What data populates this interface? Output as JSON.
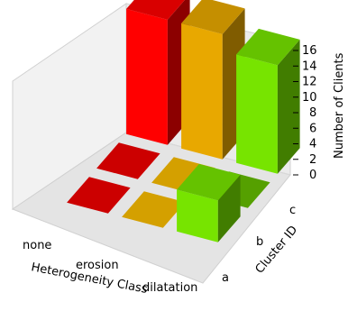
{
  "chart_data": {
    "type": "bar3d",
    "title": "",
    "xlabel": "Heterogeneity Class",
    "ylabel": "Cluster ID",
    "zlabel": "Number of Clients",
    "x_categories": [
      "none",
      "erosion",
      "dilatation"
    ],
    "y_categories": [
      "a",
      "b",
      "c"
    ],
    "zlim": [
      0,
      16
    ],
    "z_ticks": [
      "0",
      "2",
      "4",
      "6",
      "8",
      "10",
      "12",
      "14",
      "16"
    ],
    "grid": true,
    "bars": [
      {
        "x": "none",
        "y": "a",
        "value": 0,
        "color": "#cc0000"
      },
      {
        "x": "none",
        "y": "b",
        "value": 0,
        "color": "#cc0000"
      },
      {
        "x": "none",
        "y": "c",
        "value": 15,
        "color": "#ff0000"
      },
      {
        "x": "erosion",
        "y": "a",
        "value": 0,
        "color": "#d4a000"
      },
      {
        "x": "erosion",
        "y": "b",
        "value": 0,
        "color": "#d4a000"
      },
      {
        "x": "erosion",
        "y": "c",
        "value": 15,
        "color": "#e8a800"
      },
      {
        "x": "dilatation",
        "y": "a",
        "value": 5,
        "color": "#77e400"
      },
      {
        "x": "dilatation",
        "y": "b",
        "value": 0,
        "color": "#55a000"
      },
      {
        "x": "dilatation",
        "y": "c",
        "value": 13,
        "color": "#77e400"
      }
    ]
  }
}
